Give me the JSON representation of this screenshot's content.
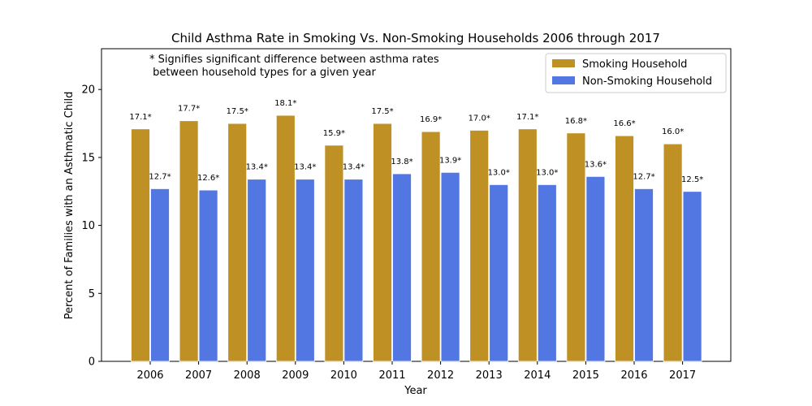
{
  "chart_data": {
    "type": "bar",
    "title": "Child Asthma Rate in Smoking Vs. Non-Smoking Households 2006 through 2017",
    "xlabel": "Year",
    "ylabel": "Percent of Families with an Asthmatic Child",
    "ylim": [
      0,
      23
    ],
    "yticks": [
      0,
      5,
      10,
      15,
      20
    ],
    "grid": false,
    "legend_position": "top-right",
    "note_lines": [
      "* Signifies significant difference between asthma rates",
      " between household types for a given year"
    ],
    "categories": [
      "2006",
      "2007",
      "2008",
      "2009",
      "2010",
      "2011",
      "2012",
      "2013",
      "2014",
      "2015",
      "2016",
      "2017"
    ],
    "series": [
      {
        "name": "Smoking Household",
        "color": "#bf9124",
        "values": [
          17.1,
          17.7,
          17.5,
          18.1,
          15.9,
          17.5,
          16.9,
          17.0,
          17.1,
          16.8,
          16.6,
          16.0
        ],
        "labels": [
          "17.1*",
          "17.7*",
          "17.5*",
          "18.1*",
          "15.9*",
          "17.5*",
          "16.9*",
          "17.0*",
          "17.1*",
          "16.8*",
          "16.6*",
          "16.0*"
        ]
      },
      {
        "name": "Non-Smoking Household",
        "color": "#5277e3",
        "values": [
          12.7,
          12.6,
          13.4,
          13.4,
          13.4,
          13.8,
          13.9,
          13.0,
          13.0,
          13.6,
          12.7,
          12.5
        ],
        "labels": [
          "12.7*",
          "12.6*",
          "13.4*",
          "13.4*",
          "13.4*",
          "13.8*",
          "13.9*",
          "13.0*",
          "13.0*",
          "13.6*",
          "12.7*",
          "12.5*"
        ]
      }
    ]
  }
}
